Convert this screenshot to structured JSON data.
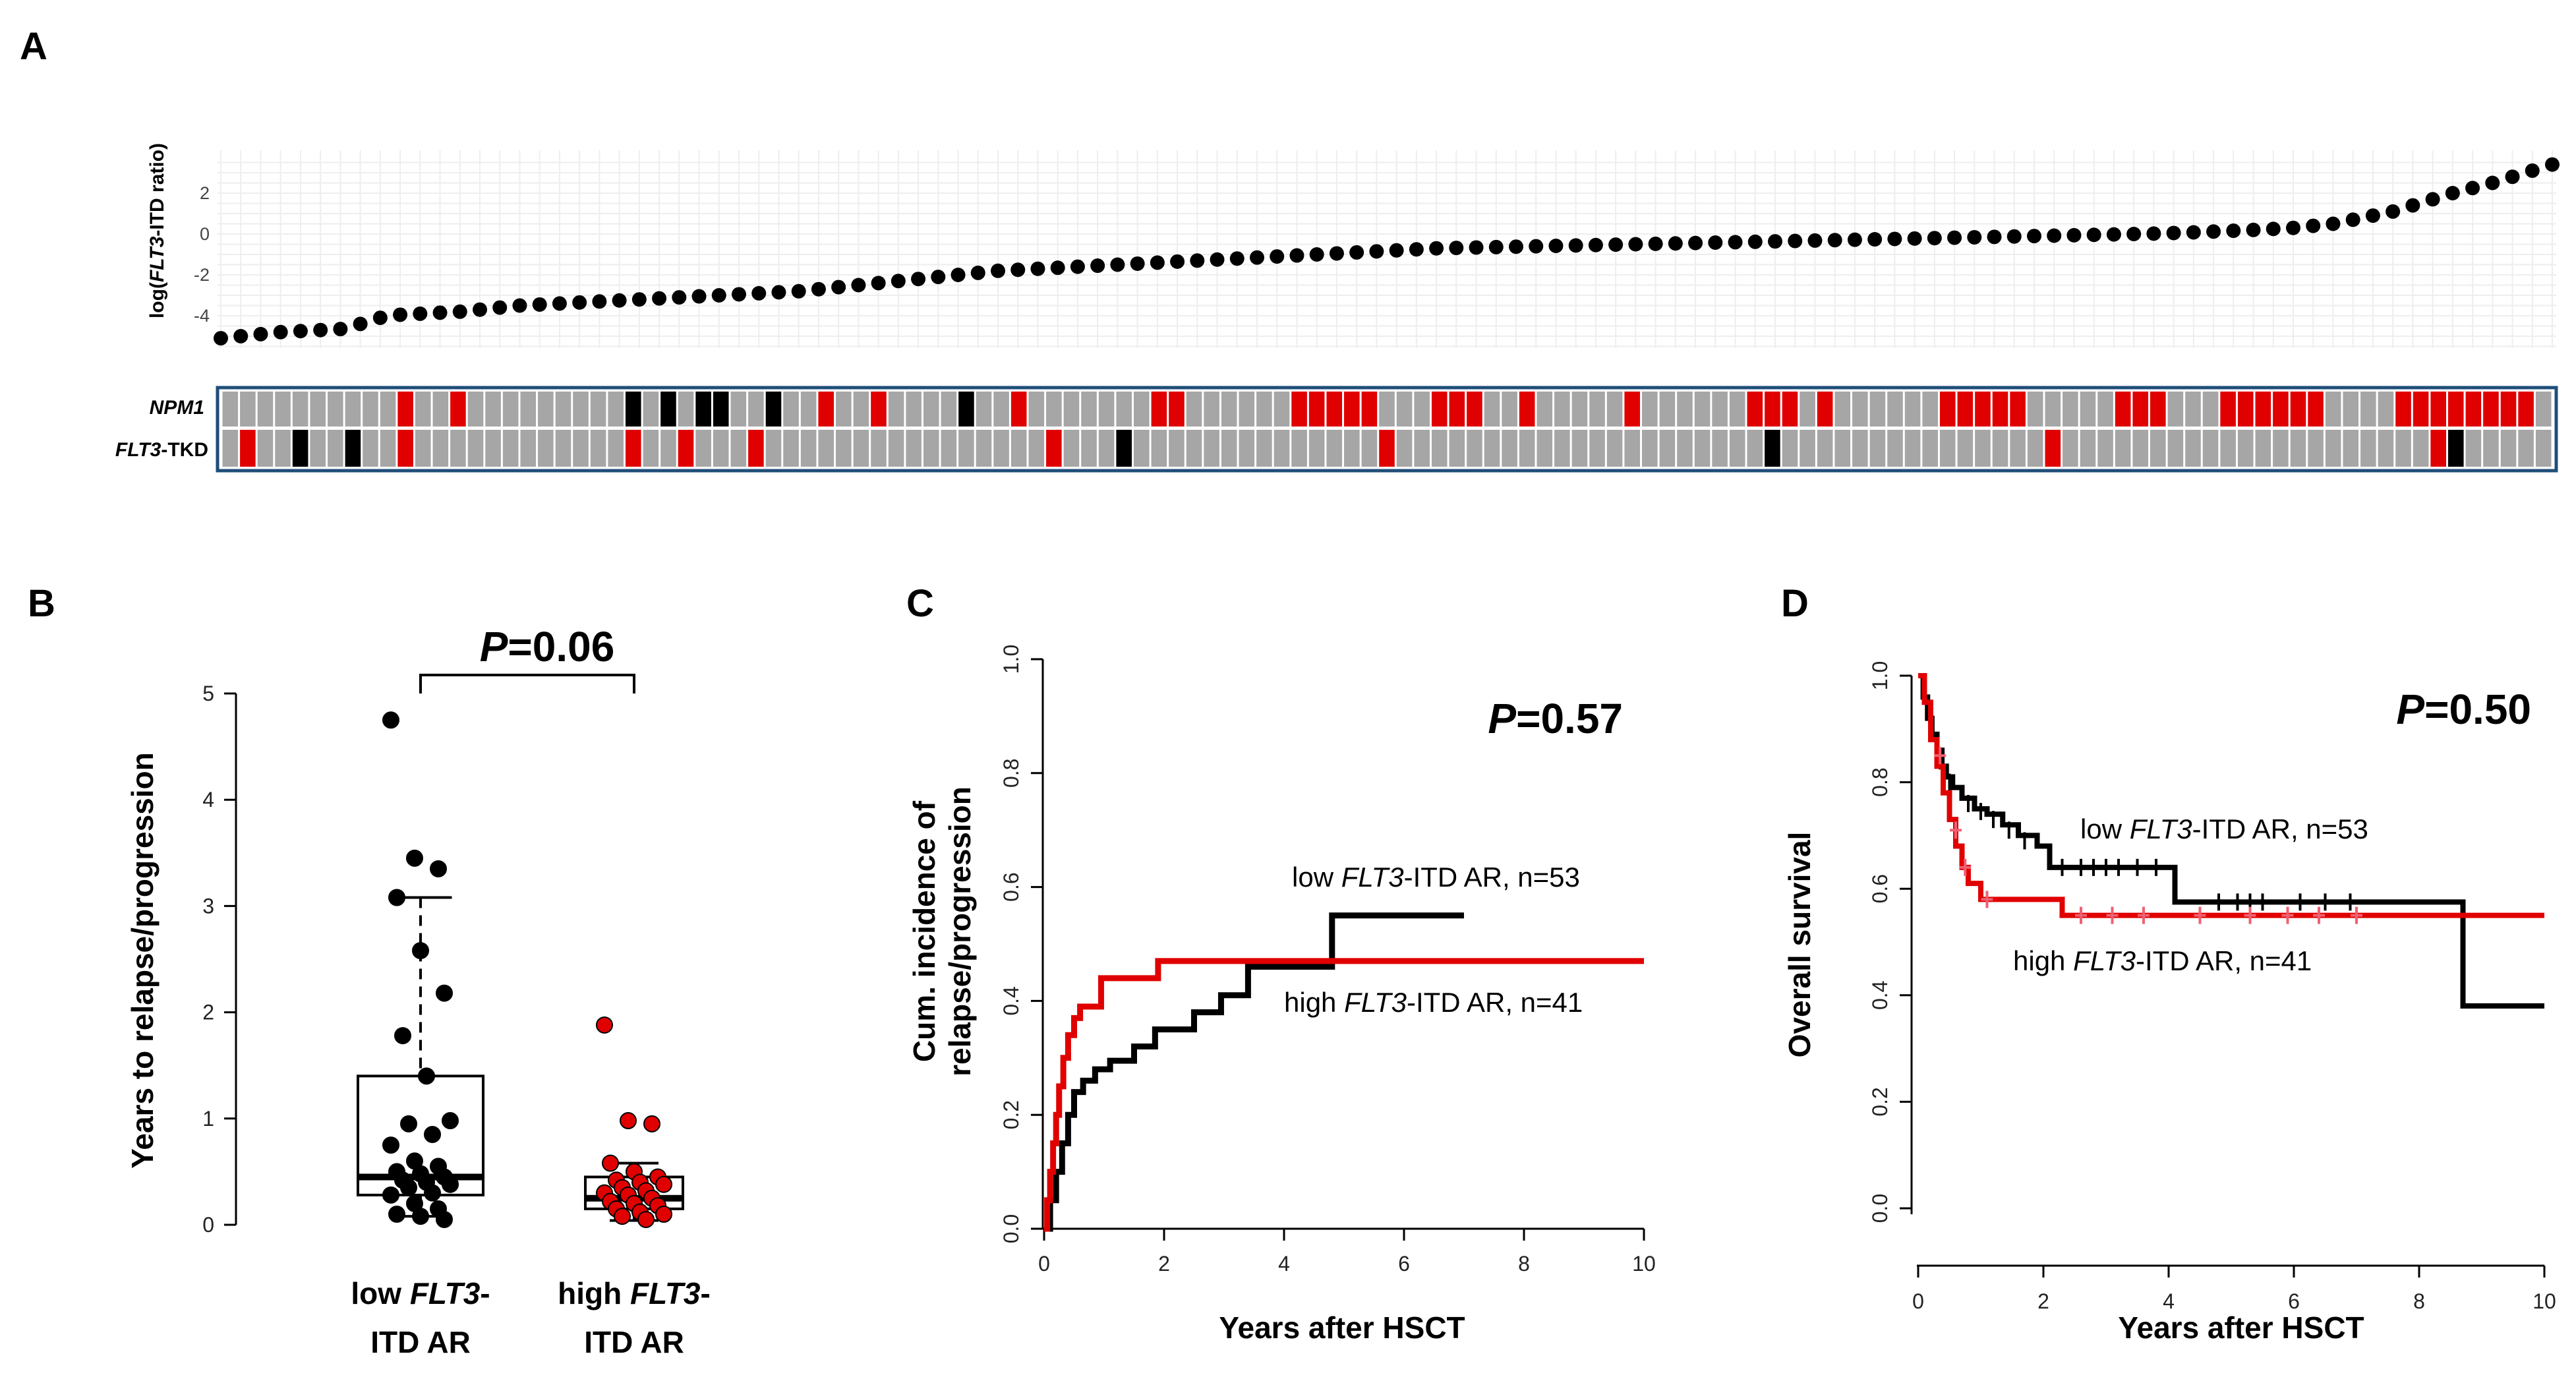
{
  "panels": {
    "A": "A",
    "B": "B",
    "C": "C",
    "D": "D"
  },
  "colors": {
    "red": "#e00000",
    "gray": "#a6a6a6",
    "black": "#000000",
    "pink": "#f06070",
    "frame": "#1f4e79"
  },
  "chart_data": [
    {
      "panel": "A",
      "type": "scatter",
      "title": "",
      "ylabel_pre": "log(",
      "ylabel_italic": "FLT3",
      "ylabel_post": "-ITD ratio)",
      "yticks": [
        "2",
        "0",
        "-2",
        "-4"
      ],
      "ylim": [
        -5.6,
        3.6
      ],
      "values": [
        -5.1,
        -5.0,
        -4.9,
        -4.8,
        -4.75,
        -4.7,
        -4.65,
        -4.4,
        -4.1,
        -3.95,
        -3.9,
        -3.85,
        -3.8,
        -3.7,
        -3.6,
        -3.5,
        -3.45,
        -3.4,
        -3.35,
        -3.3,
        -3.25,
        -3.2,
        -3.15,
        -3.1,
        -3.05,
        -3.0,
        -2.95,
        -2.9,
        -2.85,
        -2.8,
        -2.7,
        -2.6,
        -2.5,
        -2.4,
        -2.3,
        -2.2,
        -2.1,
        -2.0,
        -1.9,
        -1.8,
        -1.75,
        -1.7,
        -1.65,
        -1.6,
        -1.55,
        -1.5,
        -1.45,
        -1.4,
        -1.35,
        -1.3,
        -1.25,
        -1.2,
        -1.15,
        -1.1,
        -1.05,
        -1.0,
        -0.95,
        -0.9,
        -0.85,
        -0.8,
        -0.75,
        -0.7,
        -0.68,
        -0.66,
        -0.64,
        -0.62,
        -0.6,
        -0.58,
        -0.56,
        -0.54,
        -0.52,
        -0.5,
        -0.48,
        -0.46,
        -0.44,
        -0.42,
        -0.4,
        -0.38,
        -0.36,
        -0.34,
        -0.32,
        -0.3,
        -0.28,
        -0.26,
        -0.24,
        -0.22,
        -0.2,
        -0.18,
        -0.16,
        -0.14,
        -0.12,
        -0.1,
        -0.08,
        -0.06,
        -0.04,
        -0.02,
        0.0,
        0.02,
        0.05,
        0.08,
        0.12,
        0.16,
        0.2,
        0.25,
        0.3,
        0.4,
        0.5,
        0.7,
        0.9,
        1.1,
        1.4,
        1.7,
        2.0,
        2.25,
        2.5,
        2.8,
        3.1,
        3.4
      ],
      "mutation_rows": {
        "labels": [
          "NPM1",
          "FLT3-TKD"
        ],
        "label_npm1": "NPM1",
        "label_tkd_italic": "FLT3",
        "label_tkd_post": "-TKD",
        "npm1": "0000000000100100000000020202200200100100002001000000011000000111110001110010000010000001110100000011111000001110001111110000111111110",
        "tkd": "01002002001000000000000100100010000000000000000100020000000000000010000000000000000000002000000000000000100000000000000000000012000000"
      }
    },
    {
      "panel": "B",
      "type": "box",
      "title_italic": "P",
      "title_post": "=0.06",
      "ylabel": "Years to relapse/progression",
      "ylim": [
        0,
        5
      ],
      "yticks": [
        "0",
        "1",
        "2",
        "3",
        "4",
        "5"
      ],
      "groups": [
        {
          "name_line1_pre": "low ",
          "name_line1_italic": "FLT3",
          "name_line1_post": "-",
          "name_line2": "ITD AR",
          "q1": 0.28,
          "median": 0.45,
          "q3": 1.4,
          "whisker_low": 0.08,
          "whisker_high": 3.08,
          "points": [
            4.75,
            3.45,
            3.35,
            3.08,
            2.58,
            2.18,
            1.78,
            1.4,
            0.98,
            0.95,
            0.85,
            0.75,
            0.6,
            0.55,
            0.5,
            0.48,
            0.45,
            0.42,
            0.4,
            0.38,
            0.35,
            0.3,
            0.28,
            0.2,
            0.15,
            0.1,
            0.08,
            0.05
          ]
        },
        {
          "name_line1_pre": "high ",
          "name_line1_italic": "FLT3",
          "name_line1_post": "-",
          "name_line2": "ITD AR",
          "q1": 0.15,
          "median": 0.25,
          "q3": 0.45,
          "whisker_low": 0.04,
          "whisker_high": 0.58,
          "points": [
            1.88,
            0.98,
            0.95,
            0.58,
            0.5,
            0.45,
            0.42,
            0.4,
            0.38,
            0.35,
            0.32,
            0.3,
            0.28,
            0.25,
            0.22,
            0.2,
            0.18,
            0.15,
            0.12,
            0.1,
            0.08,
            0.05
          ]
        }
      ]
    },
    {
      "panel": "C",
      "type": "line",
      "step": true,
      "title_italic": "P",
      "title_post": "=0.57",
      "xlabel": "Years after HSCT",
      "ylabel_line1": "Cum. incidence of",
      "ylabel_line2": "relapse/progression",
      "xlim": [
        0,
        10
      ],
      "ylim": [
        0,
        1
      ],
      "xticks": [
        "0",
        "2",
        "4",
        "6",
        "8",
        "10"
      ],
      "yticks": [
        "0.0",
        "0.2",
        "0.4",
        "0.6",
        "0.8",
        "1.0"
      ],
      "series": [
        {
          "name_pre": "low ",
          "name_italic": "FLT3",
          "name_post": "-ITD AR, n=53",
          "color": "#000000",
          "x": [
            0,
            0.1,
            0.2,
            0.3,
            0.4,
            0.5,
            0.65,
            0.85,
            1.1,
            1.5,
            1.85,
            2.5,
            2.95,
            3.4,
            4.8,
            7.0
          ],
          "y": [
            0,
            0.05,
            0.1,
            0.15,
            0.2,
            0.24,
            0.26,
            0.28,
            0.295,
            0.32,
            0.35,
            0.38,
            0.41,
            0.46,
            0.55,
            0.55
          ]
        },
        {
          "name_pre": "high ",
          "name_italic": "FLT3",
          "name_post": "-ITD AR, n=41",
          "color": "#e00000",
          "x": [
            0,
            0.05,
            0.1,
            0.15,
            0.2,
            0.25,
            0.32,
            0.4,
            0.5,
            0.6,
            0.95,
            1.9,
            10
          ],
          "y": [
            0,
            0.05,
            0.1,
            0.15,
            0.2,
            0.25,
            0.3,
            0.34,
            0.37,
            0.39,
            0.44,
            0.47,
            0.47
          ]
        }
      ]
    },
    {
      "panel": "D",
      "type": "line",
      "step": true,
      "title_italic": "P",
      "title_post": "=0.50",
      "xlabel": "Years after HSCT",
      "ylabel": "Overall survival",
      "xlim": [
        0,
        10
      ],
      "ylim": [
        0,
        1
      ],
      "xticks": [
        "0",
        "2",
        "4",
        "6",
        "8",
        "10"
      ],
      "yticks": [
        "0.0",
        "0.2",
        "0.4",
        "0.6",
        "0.8",
        "1.0"
      ],
      "series": [
        {
          "name_pre": "low ",
          "name_italic": "FLT3",
          "name_post": "-ITD AR, n=53",
          "color": "#000000",
          "x": [
            0,
            0.08,
            0.15,
            0.22,
            0.3,
            0.38,
            0.45,
            0.55,
            0.7,
            0.9,
            1.1,
            1.35,
            1.6,
            1.9,
            2.1,
            4.1,
            8.7,
            10
          ],
          "y": [
            1,
            0.96,
            0.92,
            0.89,
            0.86,
            0.83,
            0.81,
            0.79,
            0.77,
            0.75,
            0.74,
            0.72,
            0.7,
            0.68,
            0.64,
            0.575,
            0.38,
            0.38
          ],
          "censor_x": [
            0.35,
            0.5,
            0.8,
            1.0,
            1.2,
            1.45,
            1.7,
            2.3,
            2.6,
            2.8,
            3.0,
            3.2,
            3.5,
            3.8,
            4.8,
            5.1,
            5.3,
            5.5,
            6.1,
            6.5,
            6.9
          ],
          "censor_y": [
            0.84,
            0.8,
            0.76,
            0.745,
            0.73,
            0.71,
            0.69,
            0.64,
            0.64,
            0.64,
            0.64,
            0.64,
            0.64,
            0.64,
            0.575,
            0.575,
            0.575,
            0.575,
            0.575,
            0.575,
            0.575
          ]
        },
        {
          "name_pre": "high ",
          "name_italic": "FLT3",
          "name_post": "-ITD AR, n=41",
          "color": "#e00000",
          "x": [
            0,
            0.1,
            0.2,
            0.3,
            0.4,
            0.5,
            0.6,
            0.7,
            0.8,
            1.0,
            2.3,
            10
          ],
          "y": [
            1,
            0.95,
            0.88,
            0.83,
            0.78,
            0.73,
            0.68,
            0.64,
            0.61,
            0.58,
            0.55,
            0.55
          ],
          "censor_x": [
            0.35,
            0.6,
            0.75,
            1.1,
            2.6,
            3.1,
            3.6,
            4.5,
            5.3,
            5.9,
            6.4,
            7.0
          ],
          "censor_y": [
            0.85,
            0.71,
            0.64,
            0.58,
            0.55,
            0.55,
            0.55,
            0.55,
            0.55,
            0.55,
            0.55,
            0.55
          ]
        }
      ]
    }
  ]
}
